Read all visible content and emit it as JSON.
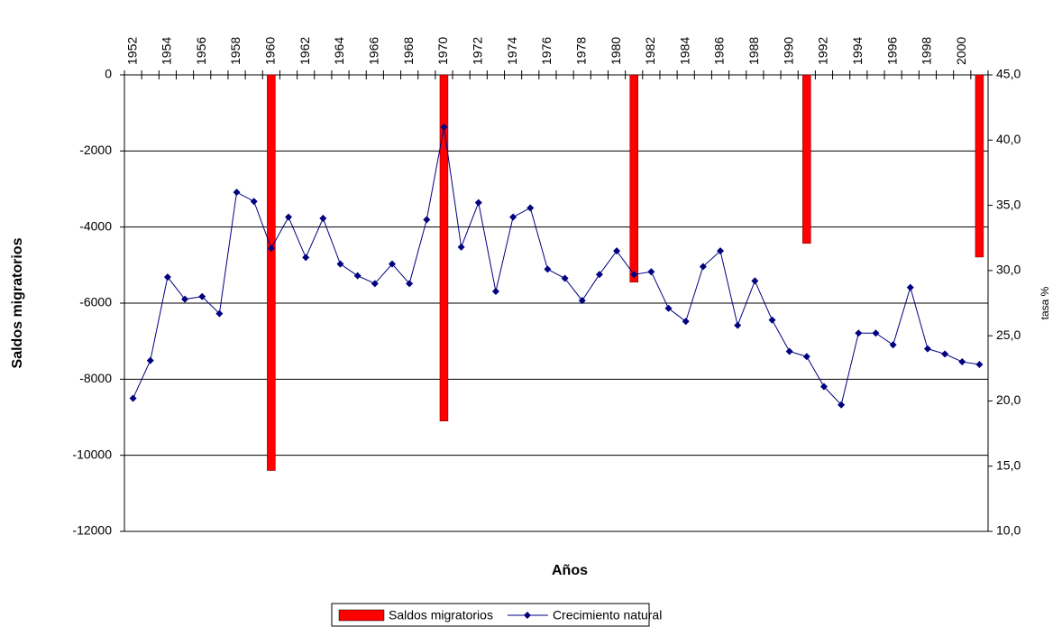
{
  "chart_data": {
    "type": "bar-line",
    "x_label": "Años",
    "y_label": "Saldos migratorios",
    "y2_label": "tasa %",
    "categories": [
      "1952",
      null,
      "1954",
      null,
      "1956",
      null,
      "1958",
      null,
      "1960",
      null,
      "1962",
      null,
      "1964",
      null,
      "1966",
      null,
      "1968",
      null,
      "1970",
      null,
      "1972",
      null,
      "1974",
      null,
      "1976",
      null,
      "1978",
      null,
      "1980",
      null,
      "1982",
      null,
      "1984",
      null,
      "1986",
      null,
      "1988",
      null,
      "1990",
      null,
      "1992",
      null,
      "1994",
      null,
      "1996",
      null,
      "1998",
      null,
      "2000",
      null
    ],
    "ylim": [
      -12000,
      0
    ],
    "yticks": [
      0,
      -2000,
      -4000,
      -6000,
      -8000,
      -10000,
      -12000
    ],
    "y2lim": [
      10,
      45
    ],
    "y2ticks": [
      {
        "value": 45,
        "label": "45,0"
      },
      {
        "value": 40,
        "label": "40,0"
      },
      {
        "value": 35,
        "label": "35,0"
      },
      {
        "value": 30,
        "label": "30,0"
      },
      {
        "value": 25,
        "label": "25,0"
      },
      {
        "value": 20,
        "label": "20,0"
      },
      {
        "value": 15,
        "label": "15,0"
      },
      {
        "value": 10,
        "label": "10,0"
      }
    ],
    "grid": true,
    "series": [
      {
        "name": "Saldos migratorios",
        "type": "bar",
        "color": "#ff0000",
        "values": [
          null,
          null,
          null,
          null,
          null,
          null,
          null,
          null,
          -10400,
          null,
          null,
          null,
          null,
          null,
          null,
          null,
          null,
          null,
          -9100,
          null,
          null,
          null,
          null,
          null,
          null,
          null,
          null,
          null,
          null,
          -5450,
          null,
          null,
          null,
          null,
          null,
          null,
          null,
          null,
          null,
          -4430,
          null,
          null,
          null,
          null,
          null,
          null,
          null,
          null,
          null,
          -4790
        ]
      },
      {
        "name": "Crecimiento natural",
        "type": "line",
        "axis": "y2",
        "color": "#000080",
        "values": [
          20.2,
          23.1,
          29.5,
          27.8,
          28.0,
          26.7,
          36.0,
          35.3,
          31.7,
          34.1,
          31.0,
          34.0,
          30.5,
          29.6,
          29.0,
          30.5,
          29.0,
          33.9,
          41.0,
          31.8,
          35.2,
          28.4,
          34.1,
          34.8,
          30.1,
          29.4,
          27.7,
          29.7,
          31.5,
          29.7,
          29.9,
          27.1,
          26.1,
          30.3,
          31.5,
          25.8,
          29.2,
          26.2,
          23.8,
          23.4,
          21.1,
          19.7,
          25.2,
          25.2,
          24.3,
          28.7,
          24.0,
          23.6,
          23.0,
          22.8
        ]
      }
    ]
  }
}
